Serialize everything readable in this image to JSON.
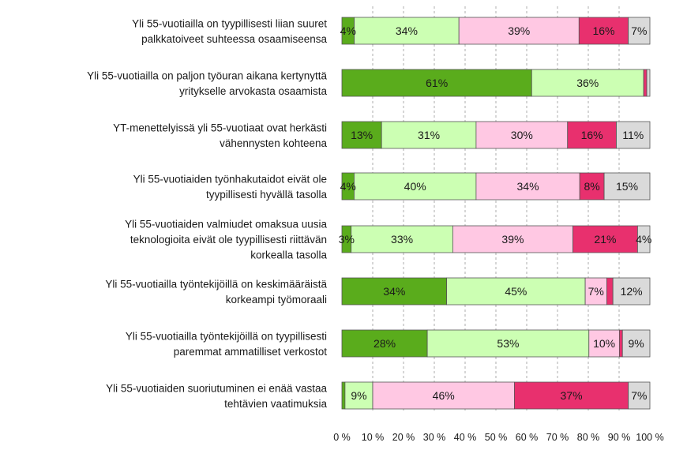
{
  "chart_data": {
    "type": "bar",
    "orientation": "horizontal",
    "stacked": true,
    "percent_stacked": true,
    "title": "",
    "xlabel": "",
    "ylabel": "",
    "xlim": [
      0,
      100
    ],
    "x_ticks": [
      "0 %",
      "10 %",
      "20 %",
      "30 %",
      "40 %",
      "50 %",
      "60 %",
      "70 %",
      "80 %",
      "90 %",
      "100 %"
    ],
    "grid": "vertical-dashed",
    "legend": "none",
    "categories": [
      [
        "Yli 55-vuotiailla on tyypillisesti liian suuret",
        "palkkatoiveet suhteessa osaamiseensa"
      ],
      [
        "Yli 55-vuotiailla on paljon työuran aikana kertynyttä",
        "yritykselle arvokasta osaamista"
      ],
      [
        "YT-menettelyissä yli 55-vuotiaat ovat herkästi",
        "vähennysten kohteena"
      ],
      [
        "Yli 55-vuotiaiden työnhakutaidot eivät ole",
        "tyypillisesti hyvällä tasolla"
      ],
      [
        "Yli 55-vuotiaiden valmiudet omaksua uusia",
        "teknologioita eivät ole tyypillisesti riittävän",
        "korkealla tasolla"
      ],
      [
        "Yli 55-vuotiailla työntekijöillä on keskimääräistä",
        "korkeampi työmoraali"
      ],
      [
        "Yli 55-vuotiailla työntekijöillä on tyypillisesti",
        "paremmat ammatilliset verkostot"
      ],
      [
        "Yli 55-vuotiaiden suoriutuminen ei enää vastaa",
        "tehtävien vaatimuksia"
      ]
    ],
    "series": [
      {
        "color": "#5aac1c",
        "values": [
          4,
          61,
          13,
          4,
          3,
          34,
          28,
          1
        ]
      },
      {
        "color": "#ccffb3",
        "values": [
          34,
          36,
          31,
          40,
          33,
          45,
          53,
          9
        ]
      },
      {
        "color": "#ffc8e3",
        "values": [
          39,
          0,
          30,
          34,
          39,
          7,
          10,
          46
        ]
      },
      {
        "color": "#e8306e",
        "values": [
          16,
          1,
          16,
          8,
          21,
          2,
          1,
          37
        ]
      },
      {
        "color": "#dadada",
        "values": [
          7,
          1,
          11,
          15,
          4,
          12,
          9,
          7
        ]
      }
    ],
    "data_labels": [
      [
        "4%",
        "34%",
        "39%",
        "16%",
        "7%"
      ],
      [
        "61%",
        "36%",
        "",
        "",
        ""
      ],
      [
        "13%",
        "31%",
        "30%",
        "16%",
        "11%"
      ],
      [
        "4%",
        "40%",
        "34%",
        "8%",
        "15%"
      ],
      [
        "3%",
        "33%",
        "39%",
        "21%",
        "4%"
      ],
      [
        "34%",
        "45%",
        "7%",
        "",
        "12%"
      ],
      [
        "28%",
        "53%",
        "10%",
        "",
        "9%"
      ],
      [
        "",
        "9%",
        "46%",
        "37%",
        "7%"
      ]
    ]
  }
}
